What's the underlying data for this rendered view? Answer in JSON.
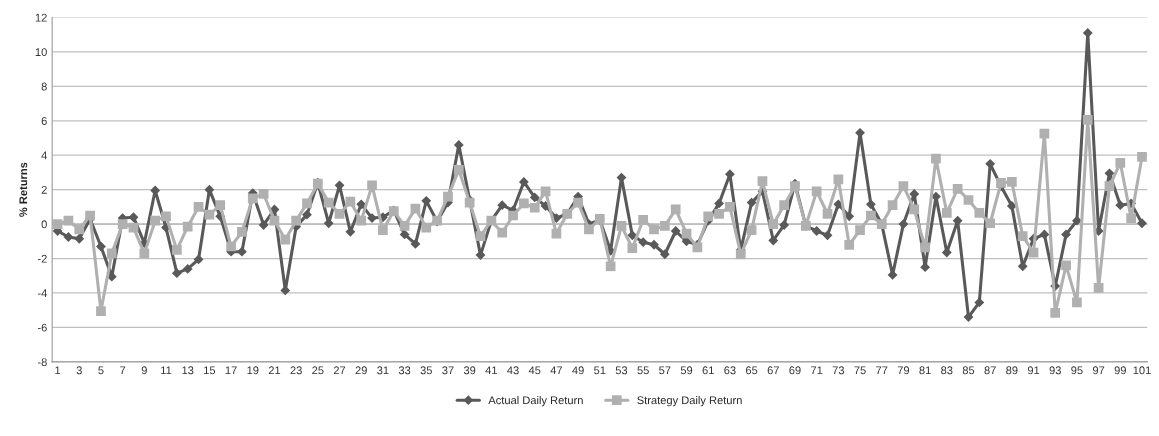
{
  "chart_data": {
    "type": "line",
    "ylabel": "% Returns",
    "categories": [
      "1",
      null,
      "3",
      null,
      "5",
      null,
      "7",
      null,
      "9",
      null,
      "11",
      null,
      "13",
      null,
      "15",
      null,
      "17",
      null,
      "19",
      null,
      "21",
      null,
      "23",
      null,
      "25",
      null,
      "27",
      null,
      "29",
      null,
      "31",
      null,
      "33",
      null,
      "35",
      null,
      "37",
      null,
      "39",
      null,
      "41",
      null,
      "43",
      null,
      "45",
      null,
      "47",
      null,
      "49",
      null,
      "51",
      null,
      "53",
      null,
      "55",
      null,
      "57",
      null,
      "59",
      null,
      "61",
      null,
      "63",
      null,
      "65",
      null,
      "67",
      null,
      "69",
      null,
      "71",
      null,
      "73",
      null,
      "75",
      null,
      "77",
      null,
      "79",
      null,
      "81",
      null,
      "83",
      null,
      "85",
      null,
      "87",
      null,
      "89",
      null,
      "91",
      null,
      "93",
      null,
      "95",
      null,
      "97",
      null,
      "99",
      null,
      "101"
    ],
    "series": [
      {
        "name": "Actual Daily Return",
        "color": "#595959",
        "marker": "diamond",
        "values": [
          -0.4,
          -0.75,
          -0.85,
          0.3,
          -1.3,
          -3.05,
          0.35,
          0.4,
          -1.1,
          1.95,
          -0.2,
          -2.85,
          -2.6,
          -2.05,
          2.0,
          0.45,
          -1.6,
          -1.6,
          1.8,
          -0.05,
          0.85,
          -3.85,
          -0.15,
          0.55,
          2.4,
          0.05,
          2.25,
          -0.45,
          1.15,
          0.35,
          0.4,
          0.8,
          -0.6,
          -1.15,
          1.35,
          0.15,
          1.25,
          4.6,
          1.4,
          -1.8,
          0.2,
          1.1,
          0.8,
          2.45,
          1.55,
          1.05,
          0.35,
          0.6,
          1.6,
          0.0,
          0.25,
          -1.55,
          2.7,
          -0.65,
          -1.05,
          -1.2,
          -1.75,
          -0.4,
          -1.0,
          -1.2,
          0.2,
          1.2,
          2.9,
          -1.5,
          1.25,
          1.9,
          -0.95,
          -0.05,
          2.35,
          -0.1,
          -0.4,
          -0.65,
          1.15,
          0.45,
          5.3,
          1.15,
          0.0,
          -2.95,
          0.0,
          1.75,
          -2.5,
          1.6,
          -1.65,
          0.2,
          -5.4,
          -4.55,
          3.5,
          2.2,
          1.05,
          -2.45,
          -0.85,
          -0.6,
          -3.6,
          -0.6,
          0.2,
          11.1,
          -0.4,
          2.95,
          1.1,
          1.2,
          0.05
        ]
      },
      {
        "name": "Strategy Daily Return",
        "color": "#b0b0b0",
        "marker": "square",
        "values": [
          0.0,
          0.2,
          -0.3,
          0.5,
          -5.05,
          -1.7,
          0.0,
          -0.2,
          -1.7,
          0.2,
          0.45,
          -1.5,
          -0.15,
          1.0,
          0.55,
          1.1,
          -1.3,
          -0.45,
          1.5,
          1.75,
          0.2,
          -0.9,
          0.2,
          1.2,
          2.35,
          1.25,
          0.6,
          1.3,
          0.2,
          2.25,
          -0.35,
          0.75,
          -0.1,
          0.9,
          -0.2,
          0.2,
          1.6,
          3.15,
          1.25,
          -0.7,
          0.2,
          -0.5,
          0.5,
          1.2,
          0.95,
          1.9,
          -0.55,
          0.6,
          1.25,
          -0.3,
          0.3,
          -2.45,
          -0.1,
          -1.4,
          0.25,
          -0.3,
          -0.1,
          0.85,
          -0.55,
          -1.35,
          0.45,
          0.6,
          1.0,
          -1.75,
          -0.35,
          2.5,
          0.0,
          1.1,
          2.2,
          -0.1,
          1.9,
          0.6,
          2.6,
          -1.2,
          -0.35,
          0.5,
          0.0,
          1.1,
          2.2,
          0.85,
          -1.35,
          3.8,
          0.65,
          2.05,
          1.4,
          0.65,
          0.05,
          2.4,
          2.45,
          -0.7,
          -1.65,
          5.25,
          -5.15,
          -2.4,
          -4.55,
          6.05,
          -3.7,
          2.2,
          3.55,
          0.35,
          3.9
        ]
      }
    ],
    "ylim": [
      -8,
      12
    ],
    "yticks": [
      -8,
      -6,
      -4,
      -2,
      0,
      2,
      4,
      6,
      8,
      10,
      12
    ],
    "grid": "y",
    "legend": "bottom"
  }
}
